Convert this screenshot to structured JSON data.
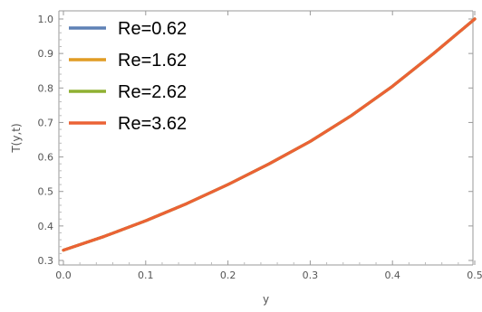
{
  "chart_data": {
    "type": "line",
    "title": "",
    "xlabel": "y",
    "ylabel": "T(y,t)",
    "xlim": [
      0,
      0.5
    ],
    "ylim": [
      0.3,
      1.0
    ],
    "x_ticks": [
      "0.0",
      "0.1",
      "0.2",
      "0.3",
      "0.4",
      "0.5"
    ],
    "y_ticks": [
      "0.3",
      "0.4",
      "0.5",
      "0.6",
      "0.7",
      "0.8",
      "0.9",
      "1.0"
    ],
    "grid": false,
    "legend_position": "top-left",
    "x": [
      0.0,
      0.05,
      0.1,
      0.15,
      0.2,
      0.25,
      0.3,
      0.35,
      0.4,
      0.45,
      0.5
    ],
    "series": [
      {
        "name": "Re=0.62",
        "color": "#5e81b5",
        "values": [
          0.33,
          0.37,
          0.415,
          0.465,
          0.52,
          0.58,
          0.645,
          0.72,
          0.805,
          0.9,
          1.0
        ]
      },
      {
        "name": "Re=1.62",
        "color": "#e19c24",
        "values": [
          0.33,
          0.37,
          0.415,
          0.465,
          0.52,
          0.58,
          0.645,
          0.72,
          0.805,
          0.9,
          1.0
        ]
      },
      {
        "name": "Re=2.62",
        "color": "#8fb032",
        "values": [
          0.33,
          0.37,
          0.415,
          0.465,
          0.52,
          0.58,
          0.645,
          0.72,
          0.805,
          0.9,
          1.0
        ]
      },
      {
        "name": "Re=3.62",
        "color": "#eb6235",
        "values": [
          0.33,
          0.37,
          0.415,
          0.465,
          0.52,
          0.58,
          0.645,
          0.72,
          0.805,
          0.9,
          1.0
        ]
      }
    ]
  }
}
